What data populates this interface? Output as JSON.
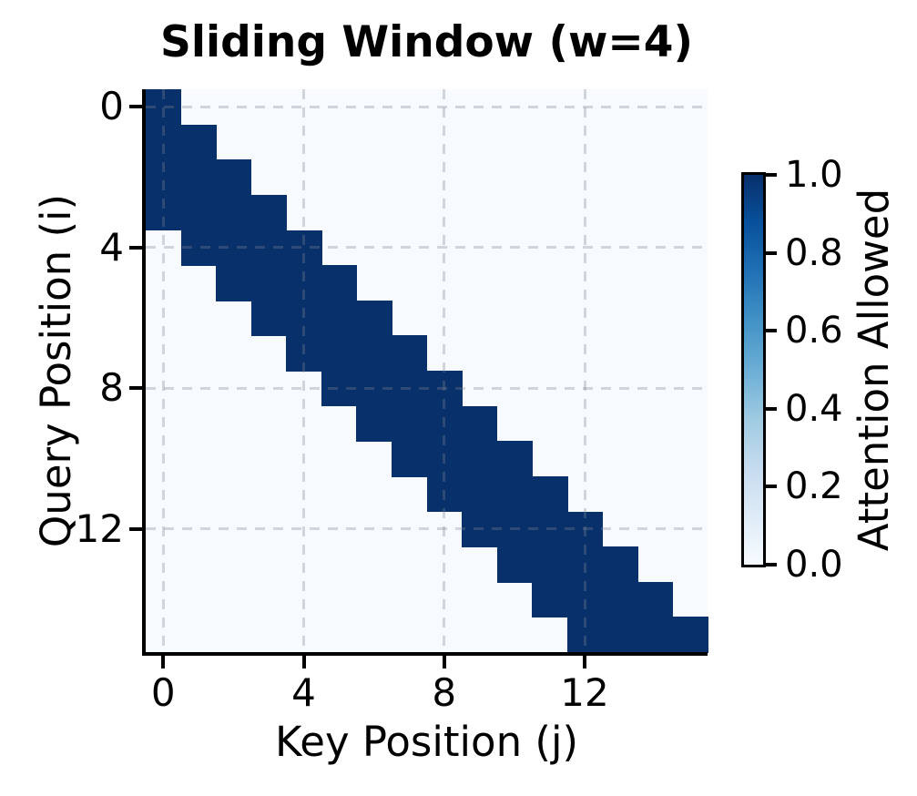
{
  "chart_data": {
    "type": "heatmap",
    "title": "Sliding Window (w=4)",
    "xlabel": "Key Position (j)",
    "ylabel": "Query Position (i)",
    "colorbar_label": "Attention Allowed",
    "window_size": 4,
    "grid_size": 16,
    "x_ticks": [
      0,
      4,
      8,
      12
    ],
    "y_ticks": [
      0,
      4,
      8,
      12
    ],
    "colorbar_ticks": [
      "1.0",
      "0.8",
      "0.6",
      "0.4",
      "0.2",
      "0.0"
    ],
    "value_range": [
      0.0,
      1.0
    ],
    "colormap": "Blues",
    "grid": true,
    "grid_style": "dashed",
    "colors": {
      "active_cell": "#08306b",
      "inactive_cell": "#f7fbff",
      "gridline": "rgba(125,132,145,0.32)",
      "spine": "#000000",
      "text": "#000000"
    },
    "colorbar_gradient_top_to_bottom": [
      "#08306b",
      "#08519c",
      "#2171b5",
      "#4292c6",
      "#6baed6",
      "#9ecae1",
      "#c6dbef",
      "#deebf7",
      "#f7fbff"
    ],
    "mask": [
      [
        1,
        0,
        0,
        0,
        0,
        0,
        0,
        0,
        0,
        0,
        0,
        0,
        0,
        0,
        0,
        0
      ],
      [
        1,
        1,
        0,
        0,
        0,
        0,
        0,
        0,
        0,
        0,
        0,
        0,
        0,
        0,
        0,
        0
      ],
      [
        1,
        1,
        1,
        0,
        0,
        0,
        0,
        0,
        0,
        0,
        0,
        0,
        0,
        0,
        0,
        0
      ],
      [
        1,
        1,
        1,
        1,
        0,
        0,
        0,
        0,
        0,
        0,
        0,
        0,
        0,
        0,
        0,
        0
      ],
      [
        0,
        1,
        1,
        1,
        1,
        0,
        0,
        0,
        0,
        0,
        0,
        0,
        0,
        0,
        0,
        0
      ],
      [
        0,
        0,
        1,
        1,
        1,
        1,
        0,
        0,
        0,
        0,
        0,
        0,
        0,
        0,
        0,
        0
      ],
      [
        0,
        0,
        0,
        1,
        1,
        1,
        1,
        0,
        0,
        0,
        0,
        0,
        0,
        0,
        0,
        0
      ],
      [
        0,
        0,
        0,
        0,
        1,
        1,
        1,
        1,
        0,
        0,
        0,
        0,
        0,
        0,
        0,
        0
      ],
      [
        0,
        0,
        0,
        0,
        0,
        1,
        1,
        1,
        1,
        0,
        0,
        0,
        0,
        0,
        0,
        0
      ],
      [
        0,
        0,
        0,
        0,
        0,
        0,
        1,
        1,
        1,
        1,
        0,
        0,
        0,
        0,
        0,
        0
      ],
      [
        0,
        0,
        0,
        0,
        0,
        0,
        0,
        1,
        1,
        1,
        1,
        0,
        0,
        0,
        0,
        0
      ],
      [
        0,
        0,
        0,
        0,
        0,
        0,
        0,
        0,
        1,
        1,
        1,
        1,
        0,
        0,
        0,
        0
      ],
      [
        0,
        0,
        0,
        0,
        0,
        0,
        0,
        0,
        0,
        1,
        1,
        1,
        1,
        0,
        0,
        0
      ],
      [
        0,
        0,
        0,
        0,
        0,
        0,
        0,
        0,
        0,
        0,
        1,
        1,
        1,
        1,
        0,
        0
      ],
      [
        0,
        0,
        0,
        0,
        0,
        0,
        0,
        0,
        0,
        0,
        0,
        1,
        1,
        1,
        1,
        0
      ],
      [
        0,
        0,
        0,
        0,
        0,
        0,
        0,
        0,
        0,
        0,
        0,
        0,
        1,
        1,
        1,
        1
      ]
    ]
  }
}
